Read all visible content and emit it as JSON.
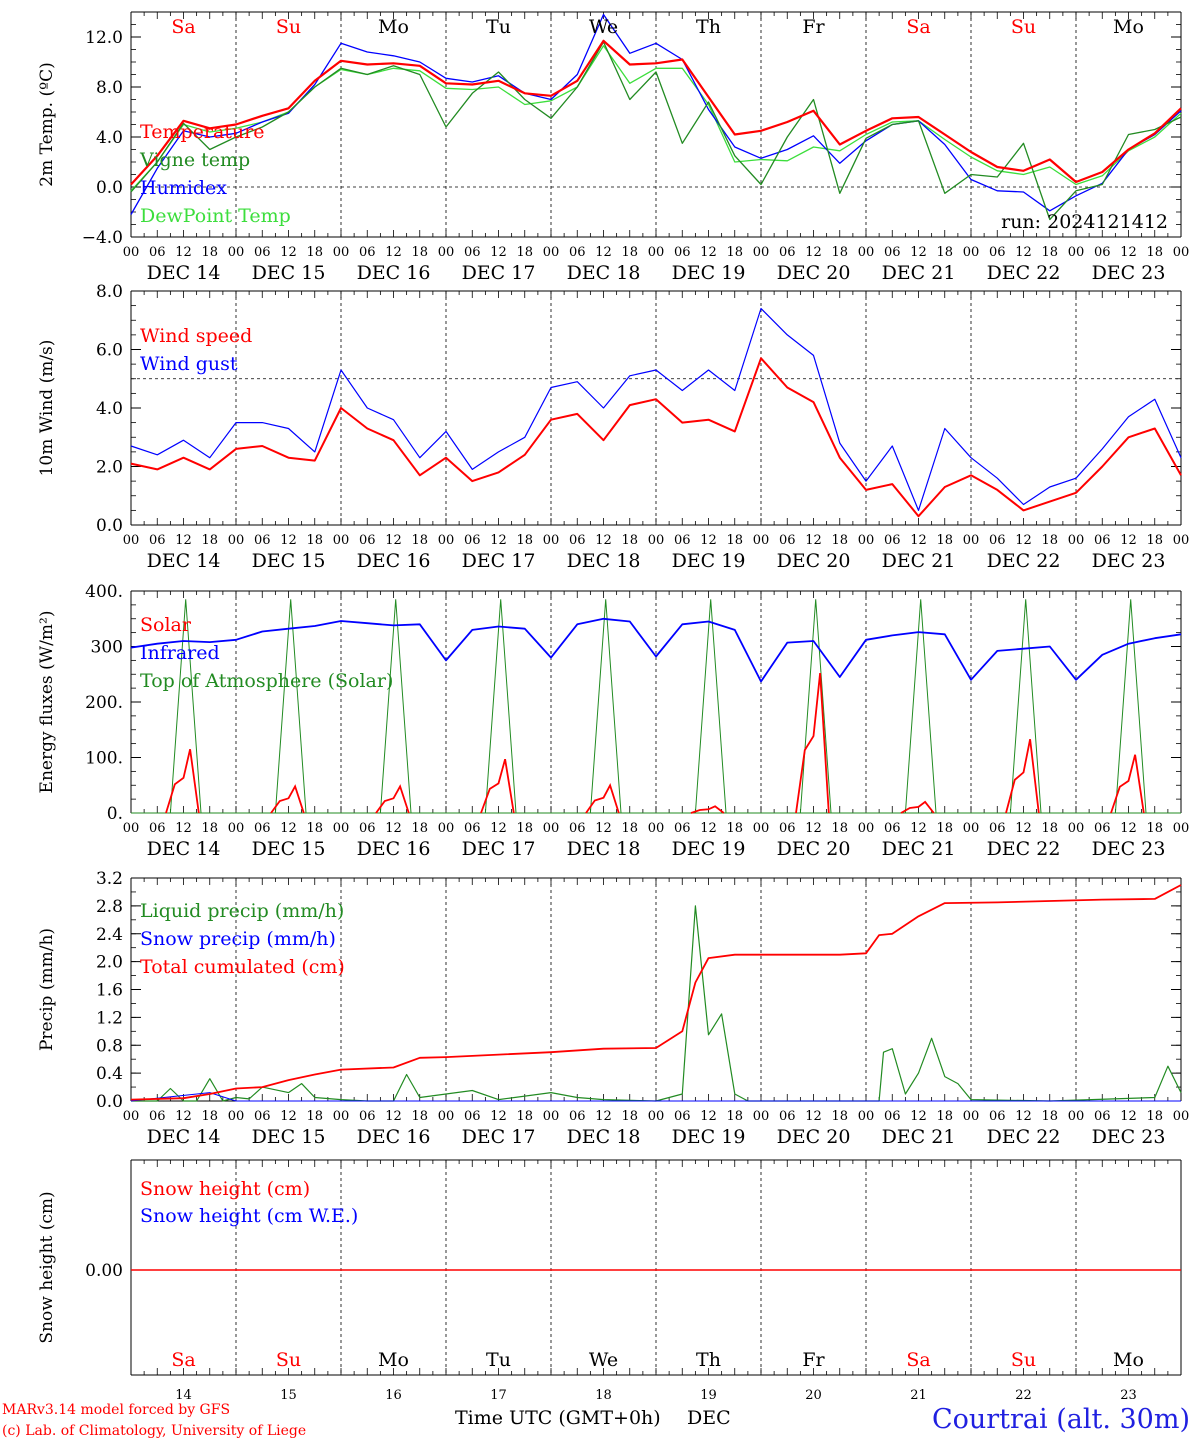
{
  "chart_data": [
    {
      "type": "line",
      "id": "temperature",
      "ylabel": "2m Temp. (ºC)",
      "ylim": [
        -4,
        14
      ],
      "yticks": [
        -4,
        0,
        4,
        8,
        12
      ],
      "ytick_labels": [
        "−4.0",
        "0.0",
        "4.0",
        "8.0",
        "12.0"
      ],
      "hline": 0,
      "day_initials": [
        "Sa",
        "Su",
        "Mo",
        "Tu",
        "We",
        "Th",
        "Fr",
        "Sa",
        "Su",
        "Mo"
      ],
      "day_initial_colors": [
        "#ff0000",
        "#ff0000",
        "#000000",
        "#000000",
        "#000000",
        "#000000",
        "#000000",
        "#ff0000",
        "#ff0000",
        "#000000"
      ],
      "run_label": "run: 2024121412",
      "series": [
        {
          "name": "Temperature",
          "color": "#ff0000",
          "width": 2.2,
          "x": [
            0,
            6,
            12,
            18,
            24,
            30,
            36,
            42,
            48,
            54,
            60,
            66,
            72,
            78,
            84,
            90,
            96,
            102,
            108,
            114,
            120,
            126,
            132,
            138,
            144,
            150,
            156,
            162,
            168,
            174,
            180,
            186,
            192,
            198,
            204,
            210,
            216,
            222,
            228,
            234,
            240
          ],
          "y": [
            0.2,
            2.5,
            5.3,
            4.7,
            5.0,
            5.7,
            6.3,
            8.5,
            10.1,
            9.8,
            9.9,
            9.7,
            8.3,
            8.2,
            8.5,
            7.5,
            7.3,
            8.5,
            11.7,
            9.8,
            9.9,
            10.2,
            7.2,
            4.2,
            4.5,
            5.2,
            6.1,
            3.4,
            4.5,
            5.5,
            5.6,
            4.2,
            2.8,
            1.6,
            1.3,
            2.2,
            0.4,
            1.2,
            3.0,
            4.3,
            6.3
          ]
        },
        {
          "name": "Vigne temp",
          "color": "#228b22",
          "width": 1.3,
          "x": [
            0,
            6,
            12,
            18,
            24,
            30,
            36,
            42,
            48,
            54,
            60,
            66,
            72,
            78,
            84,
            90,
            96,
            102,
            108,
            114,
            120,
            126,
            132,
            138,
            144,
            150,
            156,
            162,
            168,
            174,
            180,
            186,
            192,
            198,
            204,
            210,
            216,
            222,
            228,
            234,
            240
          ],
          "y": [
            -0.4,
            2.0,
            5.1,
            3.0,
            4.0,
            4.8,
            6.0,
            8.0,
            9.5,
            9.0,
            9.7,
            9.0,
            4.8,
            7.5,
            9.2,
            7.0,
            5.5,
            8.0,
            11.6,
            7.0,
            9.2,
            3.5,
            6.8,
            2.5,
            0.2,
            4.0,
            7.0,
            -0.5,
            3.9,
            5.0,
            5.3,
            -0.5,
            1.0,
            0.8,
            3.5,
            -2.6,
            -0.3,
            0.2,
            4.2,
            4.6,
            5.6
          ]
        },
        {
          "name": "Humidex",
          "color": "#0000ff",
          "width": 1.3,
          "x": [
            0,
            6,
            12,
            18,
            24,
            30,
            36,
            42,
            48,
            54,
            60,
            66,
            72,
            78,
            84,
            90,
            96,
            102,
            108,
            114,
            120,
            126,
            132,
            138,
            144,
            150,
            156,
            162,
            168,
            174,
            180,
            186,
            192,
            198,
            204,
            210,
            216,
            222,
            228,
            234,
            240
          ],
          "y": [
            -2.2,
            1.5,
            4.5,
            4.0,
            4.3,
            5.2,
            5.9,
            8.2,
            11.5,
            10.8,
            10.5,
            10.0,
            8.7,
            8.4,
            8.9,
            7.5,
            7.0,
            9.0,
            13.8,
            10.7,
            11.5,
            10.2,
            6.2,
            3.2,
            2.3,
            3.0,
            4.1,
            1.9,
            3.7,
            5.0,
            5.3,
            3.4,
            0.6,
            -0.3,
            -0.4,
            -1.9,
            -0.7,
            0.3,
            3.0,
            4.2,
            6.1
          ]
        },
        {
          "name": "DewPoint Temp",
          "color": "#3cde3c",
          "width": 1.3,
          "x": [
            0,
            6,
            12,
            18,
            24,
            30,
            36,
            42,
            48,
            54,
            60,
            66,
            72,
            78,
            84,
            90,
            96,
            102,
            108,
            114,
            120,
            126,
            132,
            138,
            144,
            150,
            156,
            162,
            168,
            174,
            180,
            186,
            192,
            198,
            204,
            210,
            216,
            222,
            228,
            234,
            240
          ],
          "y": [
            -0.3,
            2.0,
            5.0,
            4.4,
            4.7,
            5.2,
            6.0,
            8.0,
            9.4,
            9.0,
            9.5,
            9.3,
            7.9,
            7.8,
            8.0,
            6.6,
            6.9,
            8.0,
            11.3,
            8.3,
            9.5,
            9.5,
            6.6,
            2.0,
            2.2,
            2.1,
            3.2,
            2.9,
            4.2,
            5.2,
            5.3,
            3.8,
            2.4,
            1.3,
            1.0,
            1.6,
            0.2,
            0.9,
            2.9,
            4.0,
            5.9
          ]
        }
      ]
    },
    {
      "type": "line",
      "id": "wind",
      "ylabel": "10m Wind (m/s)",
      "ylim": [
        0,
        8
      ],
      "yticks": [
        0,
        2,
        4,
        6,
        8
      ],
      "ytick_labels": [
        "0.0",
        "2.0",
        "4.0",
        "6.0",
        "8.0"
      ],
      "hline": 5,
      "series": [
        {
          "name": "Wind speed",
          "color": "#ff0000",
          "width": 2.0,
          "x": [
            0,
            6,
            12,
            18,
            24,
            30,
            36,
            42,
            48,
            54,
            60,
            66,
            72,
            78,
            84,
            90,
            96,
            102,
            108,
            114,
            120,
            126,
            132,
            138,
            144,
            150,
            156,
            162,
            168,
            174,
            180,
            186,
            192,
            198,
            204,
            210,
            216,
            222,
            228,
            234,
            240
          ],
          "y": [
            2.1,
            1.9,
            2.3,
            1.9,
            2.6,
            2.7,
            2.3,
            2.2,
            4.0,
            3.3,
            2.9,
            1.7,
            2.3,
            1.5,
            1.8,
            2.4,
            3.6,
            3.8,
            2.9,
            4.1,
            4.3,
            3.5,
            3.6,
            3.2,
            5.7,
            4.7,
            4.2,
            2.3,
            1.2,
            1.4,
            0.3,
            1.3,
            1.7,
            1.2,
            0.5,
            0.8,
            1.1,
            2.0,
            3.0,
            3.3,
            1.7
          ]
        },
        {
          "name": "Wind gust",
          "color": "#0000ff",
          "width": 1.2,
          "x": [
            0,
            6,
            12,
            18,
            24,
            30,
            36,
            42,
            48,
            54,
            60,
            66,
            72,
            78,
            84,
            90,
            96,
            102,
            108,
            114,
            120,
            126,
            132,
            138,
            144,
            150,
            156,
            162,
            168,
            174,
            180,
            186,
            192,
            198,
            204,
            210,
            216,
            222,
            228,
            234,
            240
          ],
          "y": [
            2.7,
            2.4,
            2.9,
            2.3,
            3.5,
            3.5,
            3.3,
            2.5,
            5.3,
            4.0,
            3.6,
            2.3,
            3.2,
            1.9,
            2.5,
            3.0,
            4.7,
            4.9,
            4.0,
            5.1,
            5.3,
            4.6,
            5.3,
            4.6,
            7.4,
            6.5,
            5.8,
            2.8,
            1.5,
            2.7,
            0.5,
            3.3,
            2.3,
            1.6,
            0.7,
            1.3,
            1.6,
            2.6,
            3.7,
            4.3,
            2.3
          ]
        }
      ]
    },
    {
      "type": "line",
      "id": "energy",
      "ylabel": "Energy fluxes (W/m²)",
      "ylim": [
        0,
        400
      ],
      "yticks": [
        0,
        100,
        200,
        300,
        400
      ],
      "ytick_labels": [
        "0.",
        "100.",
        "200.",
        "300",
        "400."
      ],
      "series": [
        {
          "name": "Solar",
          "color": "#ff0000",
          "width": 1.8,
          "peak_values": [
            115,
            48,
            48,
            97,
            50,
            12,
            252,
            20,
            133,
            105
          ]
        },
        {
          "name": "Infrared",
          "color": "#0000ff",
          "width": 1.8,
          "x": [
            0,
            6,
            12,
            18,
            24,
            30,
            36,
            42,
            48,
            54,
            60,
            66,
            72,
            78,
            84,
            90,
            96,
            102,
            108,
            114,
            120,
            126,
            132,
            138,
            144,
            150,
            156,
            162,
            168,
            174,
            180,
            186,
            192,
            198,
            204,
            210,
            216,
            222,
            228,
            234,
            240
          ],
          "y": [
            298,
            305,
            310,
            308,
            312,
            327,
            332,
            337,
            346,
            342,
            338,
            340,
            275,
            330,
            336,
            332,
            280,
            340,
            350,
            345,
            282,
            340,
            345,
            330,
            237,
            307,
            310,
            245,
            312,
            320,
            326,
            322,
            240,
            292,
            296,
            300,
            240,
            285,
            305,
            315,
            322
          ]
        },
        {
          "name": "Top of Atmosphere (Solar)",
          "color": "#228b22",
          "width": 1.0,
          "peak_value": 385
        }
      ]
    },
    {
      "type": "line",
      "id": "precip",
      "ylabel": "Precip (mm/h)",
      "ylim": [
        0,
        3.2
      ],
      "yticks": [
        0,
        0.4,
        0.8,
        1.2,
        1.6,
        2.0,
        2.4,
        2.8,
        3.2
      ],
      "ytick_labels": [
        "0.0",
        "0.4",
        "0.8",
        "1.2",
        "1.6",
        "2.0",
        "2.4",
        "2.8",
        "3.2"
      ],
      "series": [
        {
          "name": "Liquid precip (mm/h)",
          "color": "#228b22",
          "width": 1.2,
          "x": [
            0,
            6,
            9,
            12,
            15,
            18,
            21,
            24,
            27,
            30,
            36,
            39,
            42,
            48,
            54,
            60,
            63,
            66,
            72,
            78,
            84,
            96,
            102,
            108,
            120,
            126,
            129,
            132,
            135,
            138,
            141,
            144,
            171,
            172,
            174,
            177,
            180,
            183,
            186,
            189,
            192,
            210,
            234,
            237,
            240
          ],
          "y": [
            0,
            0,
            0.18,
            0,
            0,
            0.32,
            0,
            0.05,
            0.03,
            0.2,
            0.12,
            0.25,
            0.05,
            0.02,
            0,
            0,
            0.38,
            0.05,
            0.1,
            0.15,
            0.02,
            0.12,
            0.05,
            0.02,
            0,
            0.1,
            2.8,
            0.95,
            1.25,
            0.1,
            0,
            0,
            0,
            0.7,
            0.75,
            0.1,
            0.4,
            0.9,
            0.35,
            0.25,
            0.02,
            0,
            0.05,
            0.5,
            0.12
          ]
        },
        {
          "name": "Snow precip (mm/h)",
          "color": "#0000ff",
          "width": 1.0,
          "x": [
            0,
            18,
            24,
            240
          ],
          "y": [
            0,
            0.12,
            0,
            0
          ]
        },
        {
          "name": "Total cumulated (cm)",
          "color": "#ff0000",
          "width": 1.8,
          "x": [
            0,
            12,
            18,
            24,
            30,
            36,
            42,
            48,
            60,
            66,
            72,
            96,
            108,
            120,
            126,
            129,
            132,
            138,
            150,
            162,
            168,
            171,
            174,
            180,
            186,
            198,
            210,
            222,
            234,
            240
          ],
          "y": [
            0.02,
            0.04,
            0.1,
            0.18,
            0.2,
            0.3,
            0.38,
            0.45,
            0.48,
            0.62,
            0.63,
            0.7,
            0.75,
            0.76,
            1.0,
            1.7,
            2.05,
            2.1,
            2.1,
            2.1,
            2.12,
            2.38,
            2.4,
            2.65,
            2.84,
            2.85,
            2.87,
            2.89,
            2.9,
            3.1
          ]
        }
      ]
    },
    {
      "type": "line",
      "id": "snow",
      "ylabel": "Snow height (cm)",
      "ytick_labels": [
        "0.00"
      ],
      "series": [
        {
          "name": "Snow height (cm)",
          "color": "#ff0000",
          "width": 1.5,
          "x": [
            0,
            240
          ],
          "y": [
            0,
            0
          ]
        },
        {
          "name": "Snow height (cm W.E.)",
          "color": "#0000ff",
          "width": 1.0,
          "x": [
            0,
            240
          ],
          "y": [
            0,
            0
          ]
        }
      ]
    }
  ],
  "x_axis": {
    "hours_per_day": [
      "00",
      "06",
      "12",
      "18"
    ],
    "last_tick": "00",
    "day_labels": [
      "DEC 14",
      "DEC 15",
      "DEC 16",
      "DEC 17",
      "DEC 18",
      "DEC 19",
      "DEC 20",
      "DEC 21",
      "DEC 22",
      "DEC 23"
    ],
    "day_numbers": [
      "14",
      "15",
      "16",
      "17",
      "18",
      "19",
      "20",
      "21",
      "22",
      "23"
    ],
    "xlabel": "Time UTC (GMT+0h)",
    "month": "DEC"
  },
  "footer": {
    "model_line": "MARv3.14 model forced by GFS",
    "credit_line": "(c) Lab. of Climatology, University of Liege",
    "location": "Courtrai (alt. 30m)"
  },
  "colors": {
    "weekend": "#ff0000",
    "weekday": "#000000",
    "axis": "#000000",
    "location": "#2020e0"
  }
}
